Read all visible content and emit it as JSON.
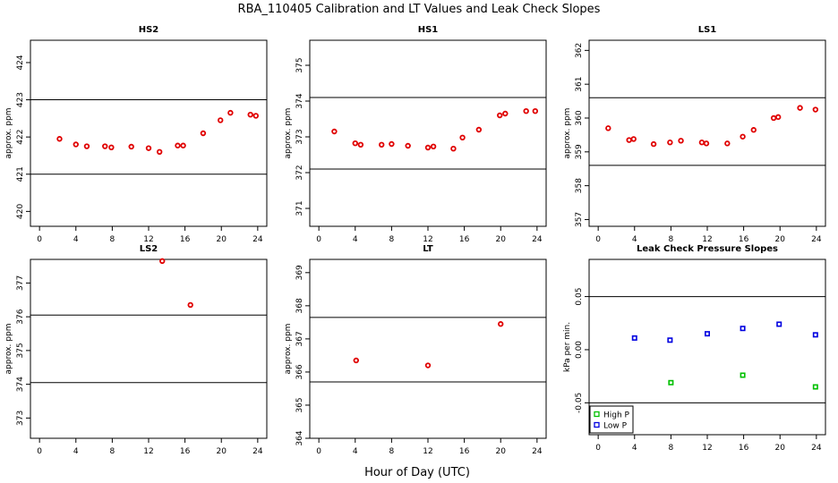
{
  "figure": {
    "title": "RBA_110405  Calibration and LT Values and Leak Check Slopes",
    "xlabel": "Hour of Day (UTC)"
  },
  "colors": {
    "red": "#e00000",
    "green": "#00c000",
    "blue": "#0000e0",
    "axis": "#000000"
  },
  "chart_data": [
    {
      "type": "scatter",
      "title": "HS2",
      "ylabel": "approx. ppm",
      "xlim": [
        -1,
        25
      ],
      "xticks": [
        0,
        4,
        8,
        12,
        16,
        20,
        24
      ],
      "ylim": [
        419.6,
        424.6
      ],
      "yticks": [
        420,
        421,
        422,
        423,
        424
      ],
      "hlines": [
        421,
        423
      ],
      "series": [
        {
          "color": "red",
          "x": [
            2.2,
            4.0,
            5.2,
            7.2,
            7.9,
            10.1,
            12.0,
            13.2,
            15.2,
            15.8,
            18.0,
            19.9,
            21.0,
            23.2,
            23.8
          ],
          "y": [
            421.95,
            421.8,
            421.75,
            421.75,
            421.72,
            421.74,
            421.7,
            421.6,
            421.77,
            421.77,
            422.1,
            422.45,
            422.65,
            422.6,
            422.57
          ]
        }
      ]
    },
    {
      "type": "scatter",
      "title": "HS1",
      "ylabel": "approx. ppm",
      "xlim": [
        -1,
        25
      ],
      "xticks": [
        0,
        4,
        8,
        12,
        16,
        20,
        24
      ],
      "ylim": [
        370.5,
        375.7
      ],
      "yticks": [
        371,
        372,
        373,
        374,
        375
      ],
      "hlines": [
        372.1,
        374.1
      ],
      "series": [
        {
          "color": "red",
          "x": [
            1.7,
            4.0,
            4.6,
            6.9,
            8.0,
            9.8,
            12.0,
            12.6,
            14.8,
            15.8,
            17.6,
            19.9,
            20.5,
            22.8,
            23.8
          ],
          "y": [
            373.15,
            372.82,
            372.78,
            372.78,
            372.8,
            372.75,
            372.7,
            372.73,
            372.67,
            372.98,
            373.2,
            373.6,
            373.65,
            373.72,
            373.72
          ]
        }
      ]
    },
    {
      "type": "scatter",
      "title": "LS1",
      "ylabel": "approx. ppm",
      "xlim": [
        -1,
        25
      ],
      "xticks": [
        0,
        4,
        8,
        12,
        16,
        20,
        24
      ],
      "ylim": [
        356.8,
        362.3
      ],
      "yticks": [
        357,
        358,
        359,
        360,
        361,
        362
      ],
      "hlines": [
        358.6,
        360.6
      ],
      "series": [
        {
          "color": "red",
          "x": [
            1.1,
            3.4,
            3.9,
            6.1,
            7.9,
            9.1,
            11.4,
            11.9,
            14.2,
            15.9,
            17.1,
            19.3,
            19.8,
            22.2,
            23.9
          ],
          "y": [
            359.7,
            359.35,
            359.38,
            359.23,
            359.28,
            359.33,
            359.28,
            359.25,
            359.25,
            359.45,
            359.65,
            360.0,
            360.03,
            360.3,
            360.25
          ]
        }
      ]
    },
    {
      "type": "scatter",
      "title": "LS2",
      "ylabel": "approx. ppm",
      "xlim": [
        -1,
        25
      ],
      "xticks": [
        0,
        4,
        8,
        12,
        16,
        20,
        24
      ],
      "ylim": [
        372.4,
        377.7
      ],
      "yticks": [
        373,
        374,
        375,
        376,
        377
      ],
      "hlines": [
        374.05,
        376.05
      ],
      "series": [
        {
          "color": "red",
          "x": [
            13.5,
            16.6
          ],
          "y": [
            377.65,
            376.35
          ]
        }
      ]
    },
    {
      "type": "scatter",
      "title": "LT",
      "ylabel": "approx. ppm",
      "xlim": [
        -1,
        25
      ],
      "xticks": [
        0,
        4,
        8,
        12,
        16,
        20,
        24
      ],
      "ylim": [
        364.0,
        369.4
      ],
      "yticks": [
        364,
        365,
        366,
        367,
        368,
        369
      ],
      "hlines": [
        365.7,
        367.65
      ],
      "series": [
        {
          "color": "red",
          "x": [
            4.1,
            12.0,
            20.0
          ],
          "y": [
            366.35,
            366.2,
            367.45
          ]
        }
      ]
    },
    {
      "type": "scatter",
      "title": "Leak Check Pressure Slopes",
      "ylabel": "kPa per min.",
      "xlim": [
        -1,
        25
      ],
      "xticks": [
        0,
        4,
        8,
        12,
        16,
        20,
        24
      ],
      "ylim": [
        -0.08,
        0.085
      ],
      "yticks": [
        -0.05,
        0.0,
        0.05
      ],
      "ytick_labels": [
        "-0.05",
        "0.00",
        "0.05"
      ],
      "hlines": [
        -0.05,
        0.05
      ],
      "legend": {
        "placement": "bottom-left",
        "entries": [
          "High P",
          "Low P"
        ]
      },
      "series": [
        {
          "name": "High P",
          "color": "green",
          "x": [
            8.0,
            15.9,
            23.9
          ],
          "y": [
            -0.031,
            -0.024,
            -0.035
          ]
        },
        {
          "name": "Low P",
          "color": "blue",
          "x": [
            4.0,
            7.9,
            12.0,
            15.9,
            19.9,
            23.9
          ],
          "y": [
            0.011,
            0.009,
            0.015,
            0.02,
            0.024,
            0.014
          ]
        }
      ]
    }
  ]
}
